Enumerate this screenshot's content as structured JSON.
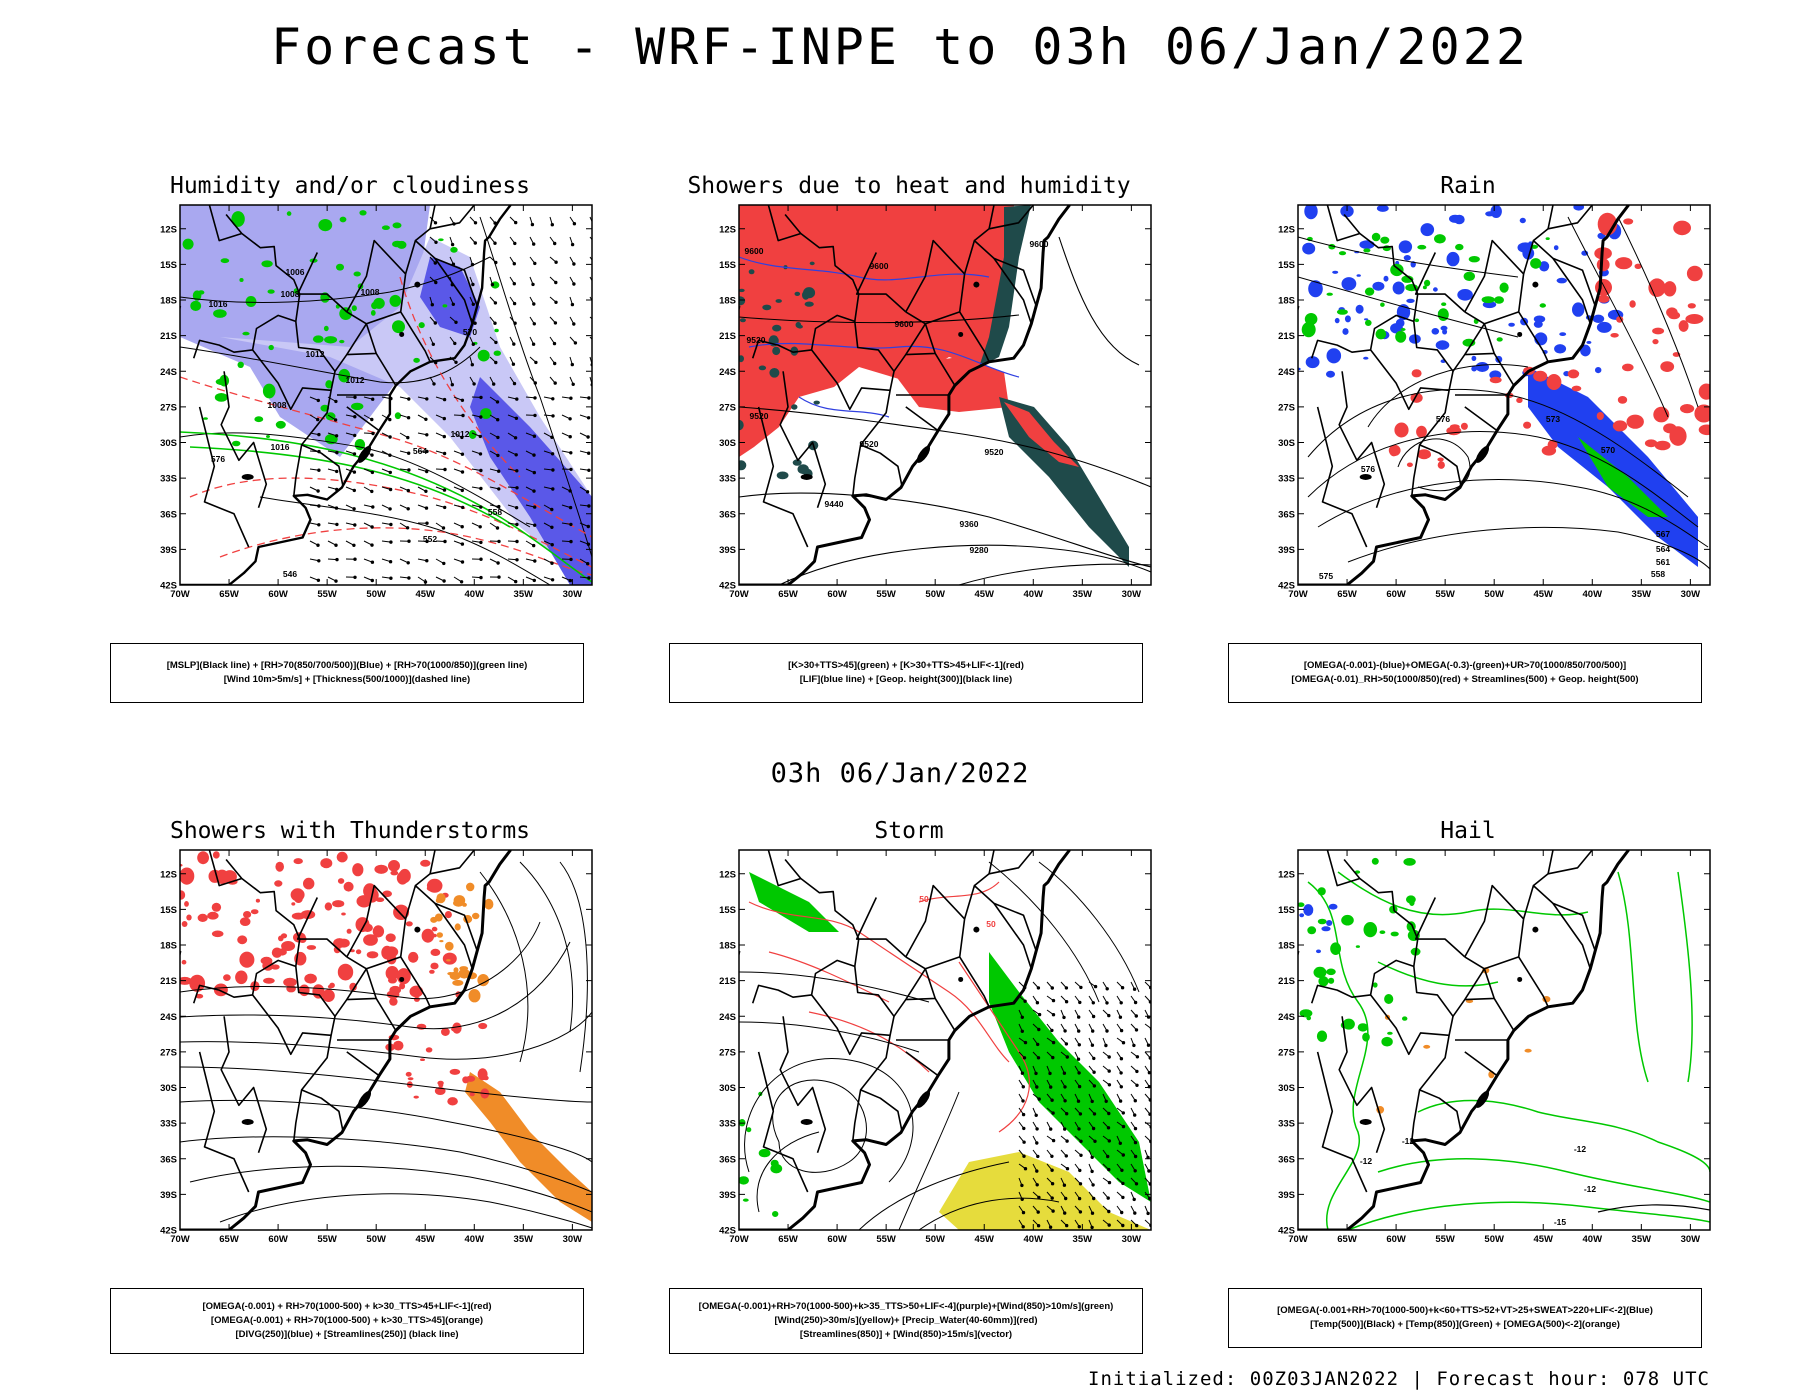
{
  "header": {
    "title": "Forecast - WRF-INPE to 03h 06/Jan/2022"
  },
  "middle": {
    "subtitle": "03h 06/Jan/2022"
  },
  "footer": {
    "text": "Initialized: 00Z03JAN2022 | Forecast hour: 078 UTC"
  },
  "axes": {
    "lat_labels": [
      "12S",
      "15S",
      "18S",
      "21S",
      "24S",
      "27S",
      "30S",
      "33S",
      "36S",
      "39S",
      "42S"
    ],
    "lon_labels": [
      "70W",
      "65W",
      "60W",
      "55W",
      "50W",
      "45W",
      "40W",
      "35W",
      "30W"
    ]
  },
  "colors": {
    "rh_blue": "#a9a8f0",
    "rh_blue_dark": "#5a58e8",
    "green": "#00c800",
    "red": "#f04040",
    "dark_teal": "#1f4a4a",
    "orange": "#f08c28",
    "yellow": "#e6dc3c"
  },
  "panels": [
    {
      "id": "humidity",
      "title": "Humidity and/or cloudiness",
      "legend": [
        "[MSLP](Black line) + [RH>70(850/700/500)](Blue) + [RH>70(1000/850)](green line)",
        "[Wind 10m>5m/s] + [Thickness(500/1000)](dashed line)"
      ],
      "labels": [
        {
          "t": "1006"
        },
        {
          "t": "1008"
        },
        {
          "t": "1012"
        },
        {
          "t": "1016"
        },
        {
          "t": "1008"
        },
        {
          "t": "1012"
        },
        {
          "t": "1016"
        },
        {
          "t": "1008"
        },
        {
          "t": "1012"
        },
        {
          "t": "576"
        },
        {
          "t": "570"
        },
        {
          "t": "564"
        },
        {
          "t": "558"
        },
        {
          "t": "552"
        },
        {
          "t": "546"
        }
      ]
    },
    {
      "id": "showers",
      "title": "Showers due to heat and humidity",
      "legend": [
        "[K>30+TTS>45](green) + [K>30+TTS>45+LIF<-1](red)",
        "[LIF](blue line) + [Geop. height(300)](black line)"
      ],
      "labels": [
        {
          "t": "9600"
        },
        {
          "t": "9600"
        },
        {
          "t": "9600"
        },
        {
          "t": "9600"
        },
        {
          "t": "9520"
        },
        {
          "t": "9520"
        },
        {
          "t": "9520"
        },
        {
          "t": "9440"
        },
        {
          "t": "9360"
        },
        {
          "t": "9280"
        },
        {
          "t": "9520"
        }
      ]
    },
    {
      "id": "rain",
      "title": "Rain",
      "legend": [
        "[OMEGA(-0.001)-(blue)+OMEGA(-0.3)-(green)+UR>70(1000/850/700/500)]",
        "[OMEGA(-0.01)_RH>50(1000/850)(red) + Streamlines(500) + Geop. height(500)"
      ],
      "labels": [
        {
          "t": "576"
        },
        {
          "t": "576"
        },
        {
          "t": "573"
        },
        {
          "t": "570"
        },
        {
          "t": "567"
        },
        {
          "t": "564"
        },
        {
          "t": "561"
        },
        {
          "t": "558"
        },
        {
          "t": "575"
        }
      ]
    },
    {
      "id": "thunder",
      "title": "Showers with Thunderstorms",
      "legend": [
        "[OMEGA(-0.001) + RH>70(1000-500) + k>30_TTS>45+LIF<-1](red)",
        "[OMEGA(-0.001) + RH>70(1000-500) + k>30_TTS>45](orange)",
        "[DIVG(250)](blue) + [Streamlines(250)] (black line)"
      ],
      "labels": []
    },
    {
      "id": "storm",
      "title": "Storm",
      "legend": [
        "[OMEGA(-0.001)+RH>70(1000-500)+k>35_TTS>50+LIF<-4](purple)+[Wind(850)>10m/s](green)",
        "[Wind(250)>30m/s](yellow)+ [Precip_Water(40-60mm)](red)",
        "[Streamlines(850)] + [Wind(850)>15m/s](vector)"
      ],
      "labels": [
        {
          "t": "50"
        },
        {
          "t": "50"
        }
      ]
    },
    {
      "id": "hail",
      "title": "Hail",
      "legend": [
        "[OMEGA(-0.001+RH>70(1000-500)+k<60+TTS>52+VT>25+SWEAT>220+LIF<-2](Blue)",
        "[Temp(500)](Black) + [Temp(850)](Green) + [OMEGA(500)<-2](orange)"
      ],
      "labels": [
        {
          "t": "-12"
        },
        {
          "t": "-15"
        },
        {
          "t": "-12"
        },
        {
          "t": "-12"
        },
        {
          "t": "-12"
        }
      ]
    }
  ]
}
